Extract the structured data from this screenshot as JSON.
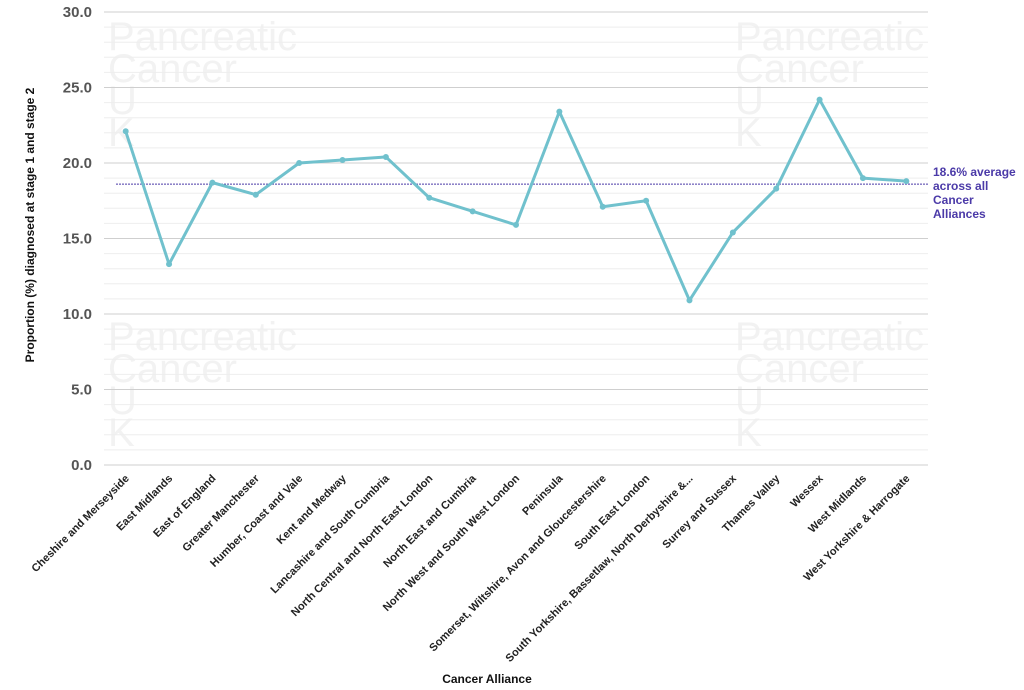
{
  "chart_data": {
    "type": "line",
    "xlabel": "Cancer Alliance",
    "ylabel": "Proportion (%) diagnosed at stage 1 and stage 2",
    "ylim": [
      0,
      30
    ],
    "yticks": [
      "0.0",
      "5.0",
      "10.0",
      "15.0",
      "20.0",
      "25.0",
      "30.0"
    ],
    "grid": true,
    "categories": [
      "Cheshire and Merseyside",
      "East Midlands",
      "East of England",
      "Greater Manchester",
      "Humber, Coast and Vale",
      "Kent and Medway",
      "Lancashire and South Cumbria",
      "North Central and North East London",
      "North East and Cumbria",
      "North West and South West London",
      "Peninsula",
      "Somerset, Wiltshire, Avon and Gloucestershire",
      "South East London",
      "South Yorkshire, Bassetlaw, North Derbyshire &...",
      "Surrey and Sussex",
      "Thames Valley",
      "Wessex",
      "West Midlands",
      "West Yorkshire & Harrogate"
    ],
    "series": [
      {
        "values": [
          22.1,
          13.3,
          18.7,
          17.9,
          20.0,
          20.2,
          20.4,
          17.7,
          16.8,
          15.9,
          23.4,
          17.1,
          17.5,
          10.9,
          15.4,
          18.3,
          24.2,
          19.0,
          18.8
        ],
        "color": "#70c1cd"
      }
    ],
    "reference_line": {
      "value": 18.6,
      "label_lines": [
        "18.6% average",
        "across all",
        "Cancer",
        "Alliances"
      ],
      "color": "#4b3aa8"
    },
    "watermark_lines": [
      "Pancreatic",
      "Cancer",
      "U",
      "K"
    ]
  }
}
